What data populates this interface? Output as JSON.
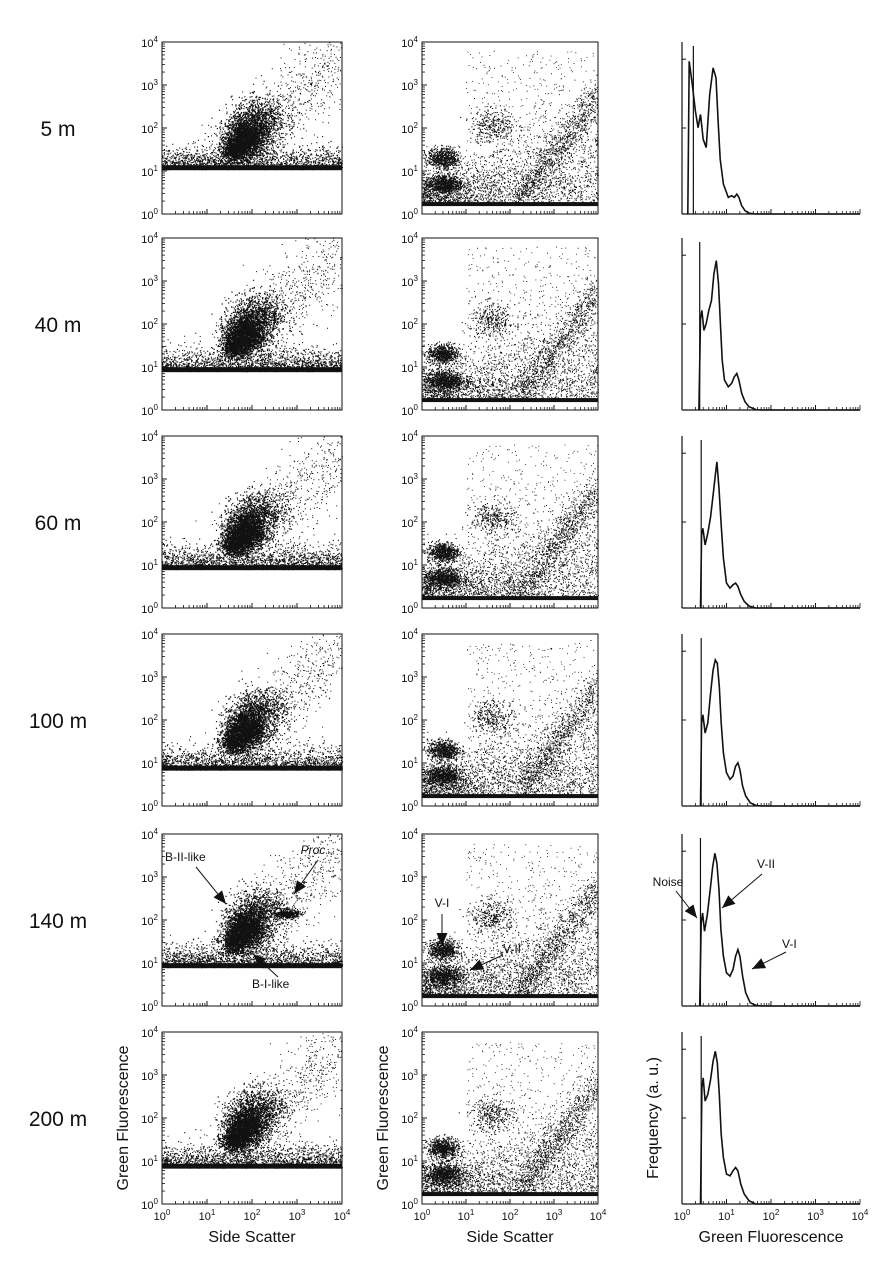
{
  "rows": [
    {
      "depth": "5 m",
      "noise_level": 11,
      "hist_noise_line": 1.8,
      "hist": [
        [
          1.35,
          0
        ],
        [
          1.45,
          0.92
        ],
        [
          1.7,
          0.78
        ],
        [
          2.0,
          0.62
        ],
        [
          2.3,
          0.52
        ],
        [
          2.6,
          0.6
        ],
        [
          3.0,
          0.45
        ],
        [
          3.5,
          0.4
        ],
        [
          4.2,
          0.72
        ],
        [
          5.0,
          0.88
        ],
        [
          5.8,
          0.82
        ],
        [
          6.5,
          0.55
        ],
        [
          7.2,
          0.33
        ],
        [
          8.5,
          0.18
        ],
        [
          11,
          0.1
        ],
        [
          13,
          0.11
        ],
        [
          15,
          0.1
        ],
        [
          17,
          0.12
        ],
        [
          19,
          0.1
        ],
        [
          22,
          0.05
        ],
        [
          26,
          0.02
        ],
        [
          32,
          0.005
        ],
        [
          45,
          0
        ],
        [
          10000,
          0
        ]
      ]
    },
    {
      "depth": "40 m",
      "noise_level": 8,
      "hist_noise_line": 2.5,
      "hist": [
        [
          2.4,
          0
        ],
        [
          2.6,
          0.55
        ],
        [
          2.8,
          0.6
        ],
        [
          3.1,
          0.48
        ],
        [
          3.5,
          0.52
        ],
        [
          4.0,
          0.6
        ],
        [
          4.6,
          0.66
        ],
        [
          5.2,
          0.82
        ],
        [
          5.9,
          0.9
        ],
        [
          6.6,
          0.76
        ],
        [
          7.3,
          0.52
        ],
        [
          8.0,
          0.3
        ],
        [
          9,
          0.18
        ],
        [
          11,
          0.14
        ],
        [
          13,
          0.16
        ],
        [
          15,
          0.2
        ],
        [
          17,
          0.22
        ],
        [
          19,
          0.18
        ],
        [
          22,
          0.1
        ],
        [
          26,
          0.05
        ],
        [
          32,
          0.02
        ],
        [
          45,
          0.003
        ],
        [
          60,
          0
        ],
        [
          10000,
          0
        ]
      ]
    },
    {
      "depth": "60 m",
      "noise_level": 8,
      "hist_noise_line": 2.7,
      "hist": [
        [
          2.6,
          0
        ],
        [
          2.75,
          0.44
        ],
        [
          2.95,
          0.48
        ],
        [
          3.3,
          0.38
        ],
        [
          3.8,
          0.45
        ],
        [
          4.4,
          0.55
        ],
        [
          5.0,
          0.68
        ],
        [
          5.6,
          0.8
        ],
        [
          6.1,
          0.88
        ],
        [
          6.8,
          0.72
        ],
        [
          7.6,
          0.5
        ],
        [
          8.5,
          0.3
        ],
        [
          10,
          0.15
        ],
        [
          12,
          0.12
        ],
        [
          14,
          0.14
        ],
        [
          16,
          0.15
        ],
        [
          18,
          0.13
        ],
        [
          21,
          0.08
        ],
        [
          25,
          0.04
        ],
        [
          32,
          0.012
        ],
        [
          45,
          0
        ],
        [
          10000,
          0
        ]
      ]
    },
    {
      "depth": "100 m",
      "noise_level": 7,
      "hist_noise_line": 2.7,
      "hist": [
        [
          2.6,
          0
        ],
        [
          2.75,
          0.5
        ],
        [
          2.95,
          0.55
        ],
        [
          3.3,
          0.44
        ],
        [
          3.8,
          0.5
        ],
        [
          4.4,
          0.68
        ],
        [
          5.0,
          0.82
        ],
        [
          5.6,
          0.88
        ],
        [
          6.2,
          0.86
        ],
        [
          6.9,
          0.72
        ],
        [
          7.6,
          0.5
        ],
        [
          8.5,
          0.32
        ],
        [
          10,
          0.2
        ],
        [
          12,
          0.16
        ],
        [
          14,
          0.18
        ],
        [
          16,
          0.24
        ],
        [
          18,
          0.26
        ],
        [
          20,
          0.22
        ],
        [
          23,
          0.12
        ],
        [
          27,
          0.06
        ],
        [
          34,
          0.02
        ],
        [
          45,
          0.004
        ],
        [
          60,
          0
        ],
        [
          10000,
          0
        ]
      ]
    },
    {
      "depth": "140 m",
      "noise_level": 8,
      "hist_noise_line": 2.6,
      "hist": [
        [
          2.5,
          0
        ],
        [
          2.7,
          0.5
        ],
        [
          2.9,
          0.56
        ],
        [
          3.2,
          0.45
        ],
        [
          3.7,
          0.55
        ],
        [
          4.3,
          0.7
        ],
        [
          4.9,
          0.84
        ],
        [
          5.5,
          0.92
        ],
        [
          6.1,
          0.86
        ],
        [
          6.8,
          0.7
        ],
        [
          7.5,
          0.46
        ],
        [
          8.5,
          0.3
        ],
        [
          10,
          0.2
        ],
        [
          12,
          0.18
        ],
        [
          14,
          0.22
        ],
        [
          16,
          0.3
        ],
        [
          18,
          0.34
        ],
        [
          20,
          0.3
        ],
        [
          23,
          0.18
        ],
        [
          27,
          0.08
        ],
        [
          34,
          0.02
        ],
        [
          45,
          0.005
        ],
        [
          60,
          0
        ],
        [
          10000,
          0
        ]
      ]
    },
    {
      "depth": "200 m",
      "noise_level": 7,
      "hist_noise_line": 2.7,
      "hist": [
        [
          2.6,
          0
        ],
        [
          2.8,
          0.7
        ],
        [
          3.0,
          0.76
        ],
        [
          3.3,
          0.62
        ],
        [
          3.8,
          0.66
        ],
        [
          4.4,
          0.75
        ],
        [
          5.0,
          0.86
        ],
        [
          5.6,
          0.92
        ],
        [
          6.2,
          0.85
        ],
        [
          6.9,
          0.66
        ],
        [
          7.6,
          0.42
        ],
        [
          8.5,
          0.28
        ],
        [
          10,
          0.18
        ],
        [
          12,
          0.17
        ],
        [
          14,
          0.2
        ],
        [
          16,
          0.22
        ],
        [
          18,
          0.2
        ],
        [
          21,
          0.12
        ],
        [
          25,
          0.06
        ],
        [
          32,
          0.02
        ],
        [
          45,
          0
        ],
        [
          10000,
          0
        ]
      ]
    }
  ],
  "column1": {
    "x_label": "Side Scatter",
    "y_label": "Green Fluorescence",
    "x_ticks": [
      {
        "base": "10",
        "exp": "0"
      },
      {
        "base": "10",
        "exp": "1"
      },
      {
        "base": "10",
        "exp": "2"
      },
      {
        "base": "10",
        "exp": "3"
      },
      {
        "base": "10",
        "exp": "4"
      }
    ],
    "y_ticks": [
      {
        "base": "10",
        "exp": "0"
      },
      {
        "base": "10",
        "exp": "1"
      },
      {
        "base": "10",
        "exp": "2"
      },
      {
        "base": "10",
        "exp": "3"
      },
      {
        "base": "10",
        "exp": "4"
      }
    ],
    "populations": [
      {
        "label": "B-II-like",
        "center_x": 80,
        "center_y": 75
      },
      {
        "label": "B-I-like",
        "center_x": 60,
        "center_y": 30
      },
      {
        "label": "Proc",
        "center_x": 600,
        "center_y": 140
      }
    ]
  },
  "column2": {
    "x_label": "Side Scatter",
    "y_label": "Green Fluorescence",
    "x_ticks": [
      {
        "base": "10",
        "exp": "0"
      },
      {
        "base": "10",
        "exp": "1"
      },
      {
        "base": "10",
        "exp": "2"
      },
      {
        "base": "10",
        "exp": "3"
      },
      {
        "base": "10",
        "exp": "4"
      }
    ],
    "y_ticks": [
      {
        "base": "10",
        "exp": "0"
      },
      {
        "base": "10",
        "exp": "1"
      },
      {
        "base": "10",
        "exp": "2"
      },
      {
        "base": "10",
        "exp": "3"
      },
      {
        "base": "10",
        "exp": "4"
      }
    ],
    "populations": [
      {
        "label": "V-I",
        "center_x": 3,
        "center_y": 20
      },
      {
        "label": "V-II",
        "center_x": 4,
        "center_y": 4
      }
    ]
  },
  "column3": {
    "x_label": "Green Fluorescence",
    "y_label": "Frequency (a. u.)",
    "x_ticks": [
      {
        "base": "10",
        "exp": "0"
      },
      {
        "base": "10",
        "exp": "1"
      },
      {
        "base": "10",
        "exp": "2"
      },
      {
        "base": "10",
        "exp": "3"
      },
      {
        "base": "10",
        "exp": "4"
      }
    ],
    "peaks": [
      {
        "label": "Noise",
        "x": 2.7
      },
      {
        "label": "V-II",
        "x": 5.5
      },
      {
        "label": "V-I",
        "x": 18
      }
    ]
  },
  "chart_data": {
    "type": "scatter",
    "description_of_panels": "6 depth rows x 3 columns: Side Scatter vs Green Fluorescence cytograms, and Green Fluorescence histograms",
    "x_scale": "log",
    "y_scale": "log",
    "xlim": [
      1,
      10000
    ],
    "ylim": [
      1,
      10000
    ],
    "grid": false,
    "row_labels": [
      "5 m",
      "40 m",
      "60 m",
      "100 m",
      "140 m",
      "200 m"
    ]
  },
  "colors": {
    "ink": "#111111",
    "background": "#ffffff"
  }
}
